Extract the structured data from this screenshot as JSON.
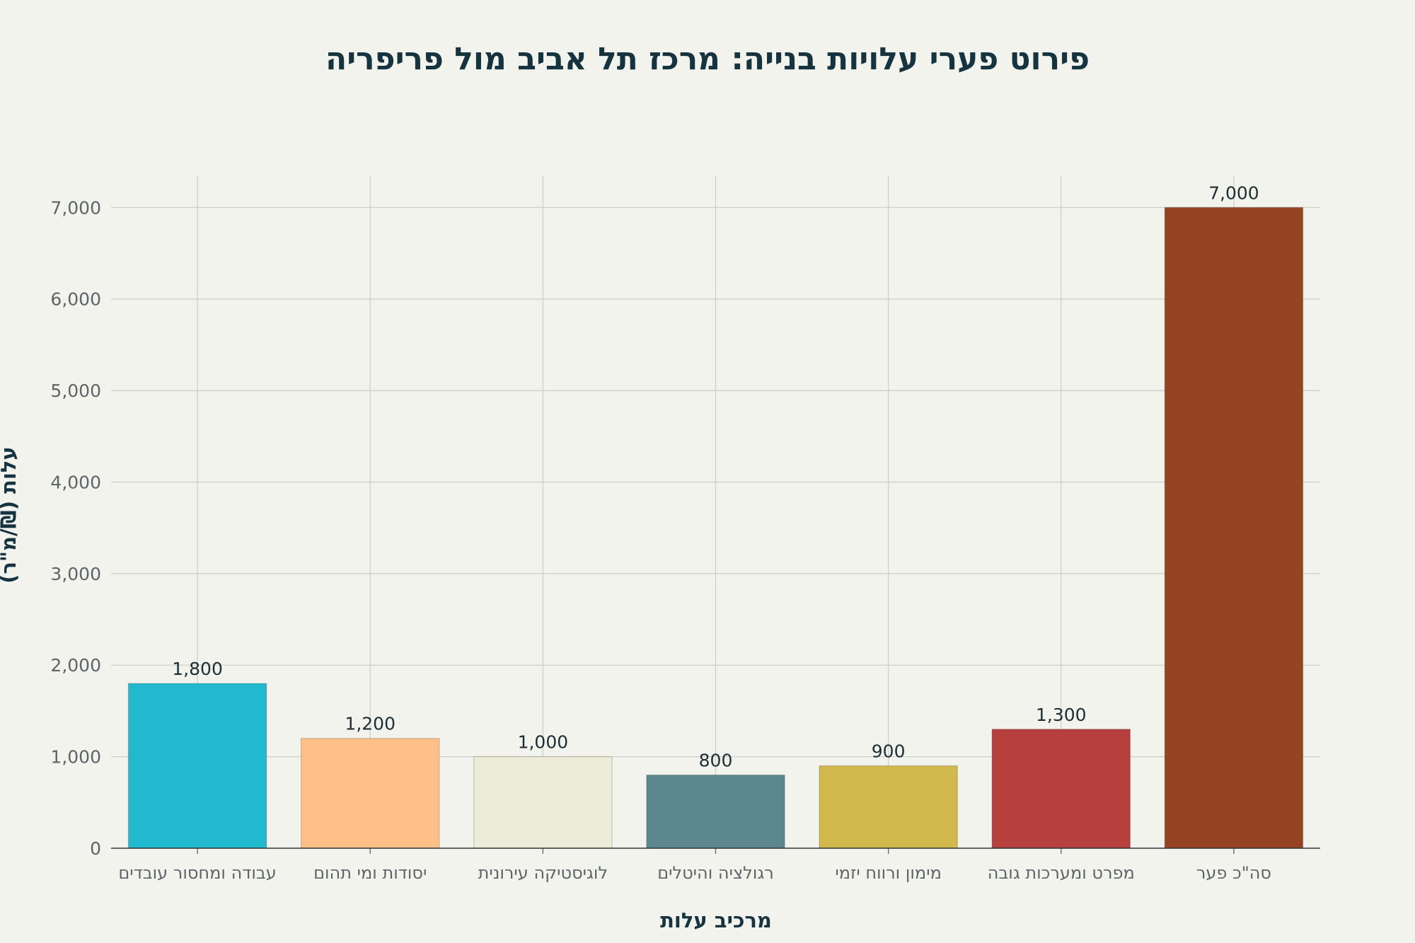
{
  "chart_data": {
    "type": "bar",
    "title": "פירוט פערי עלויות בנייה: מרכז תל אביב מול פריפריה",
    "xlabel": "מרכיב עלות",
    "ylabel": "עלות (₪/מ\"ר)",
    "categories": [
      "עבודה ומחסור עובדים",
      "יסודות ומי תהום",
      "לוגיסטיקה עירונית",
      "רגולציה והיטלים",
      "מימון ורווח יזמי",
      "מפרט ומערכות גובה",
      "סה\"כ פער"
    ],
    "values": [
      1800,
      1200,
      1000,
      800,
      900,
      1300,
      7000
    ],
    "data_labels": [
      "1,800",
      "1,200",
      "1,000",
      "800",
      "900",
      "1,300",
      "7,000"
    ],
    "colors": [
      "#22b8ce",
      "#ffc088",
      "#ececd8",
      "#5d878e",
      "#d2b94d",
      "#b6403e",
      "#944423"
    ],
    "ylim": [
      0,
      7350
    ],
    "yticks": [
      0,
      1000,
      2000,
      3000,
      4000,
      5000,
      6000,
      7000
    ],
    "ytick_labels": [
      "0",
      "1,000",
      "2,000",
      "3,000",
      "4,000",
      "5,000",
      "6,000",
      "7,000"
    ],
    "grid": true,
    "legend": "none"
  }
}
